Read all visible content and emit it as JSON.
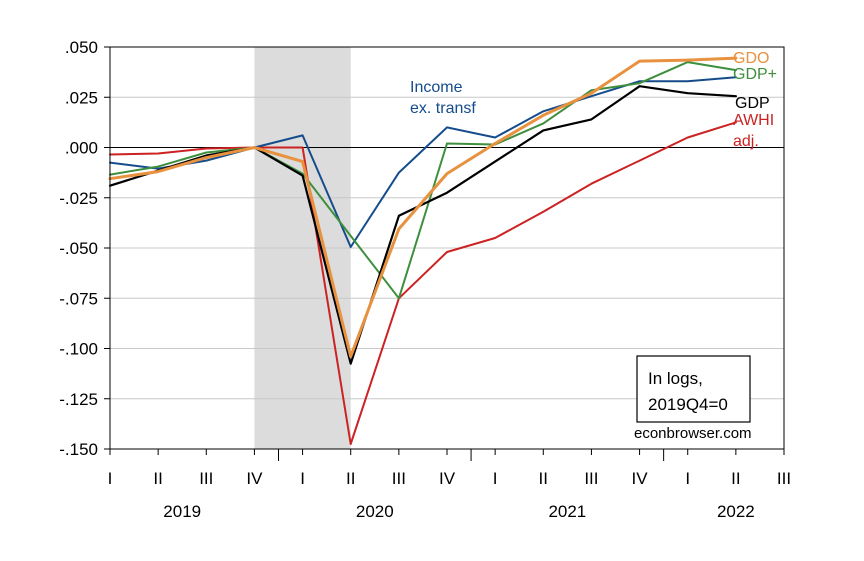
{
  "chart_data": {
    "type": "line",
    "x": [
      "2019Q1",
      "2019Q2",
      "2019Q3",
      "2019Q4",
      "2020Q1",
      "2020Q2",
      "2020Q3",
      "2020Q4",
      "2021Q1",
      "2021Q2",
      "2021Q3",
      "2021Q4",
      "2022Q1",
      "2022Q2"
    ],
    "quarter_ticks": [
      "I",
      "II",
      "III",
      "IV",
      "I",
      "II",
      "III",
      "IV",
      "I",
      "II",
      "III",
      "IV",
      "I",
      "II",
      "III"
    ],
    "years": [
      "2019",
      "2020",
      "2021",
      "2022"
    ],
    "ylim": [
      -0.15,
      0.05
    ],
    "yticks": [
      0.05,
      0.025,
      0.0,
      -0.025,
      -0.05,
      -0.075,
      -0.1,
      -0.125,
      -0.15
    ],
    "ytick_labels": [
      ".050",
      ".025",
      ".000",
      "-.025",
      "-.050",
      "-.075",
      "-.100",
      "-.125",
      "-.150"
    ],
    "recession_shade": {
      "from": "2019Q4",
      "to": "2020Q2",
      "color": "#dcdcdc"
    },
    "zero_line": true,
    "grid": "horizontal",
    "series": [
      {
        "key": "awhi",
        "label_lines": [
          "AWHI",
          "adj."
        ],
        "color": "#cc2222",
        "width": 2,
        "values": [
          -0.0035,
          -0.003,
          -0.0005,
          0.0,
          0.0,
          -0.1475,
          -0.075,
          -0.052,
          -0.045,
          -0.032,
          -0.018,
          -0.0065,
          0.005,
          0.0125
        ]
      },
      {
        "key": "income",
        "label_lines": [
          "Income",
          "ex. transf"
        ],
        "color": "#154c8c",
        "width": 2,
        "values": [
          -0.0075,
          -0.0105,
          -0.0065,
          0.0,
          0.006,
          -0.0495,
          -0.0125,
          0.01,
          0.005,
          0.018,
          0.0255,
          0.033,
          0.033,
          0.035
        ]
      },
      {
        "key": "gdpplus",
        "label_lines": [
          "GDP+"
        ],
        "color": "#3d8f3d",
        "width": 2,
        "values": [
          -0.0135,
          -0.0095,
          -0.0025,
          0.0,
          -0.013,
          -0.044,
          -0.075,
          0.002,
          0.0015,
          0.012,
          0.0285,
          0.032,
          0.0425,
          0.0385
        ]
      },
      {
        "key": "gdp",
        "label_lines": [
          "GDP"
        ],
        "color": "#000000",
        "width": 2.2,
        "values": [
          -0.019,
          -0.0115,
          -0.004,
          0.0,
          -0.014,
          -0.1075,
          -0.034,
          -0.0225,
          -0.007,
          0.0085,
          0.014,
          0.0305,
          0.027,
          0.0255
        ]
      },
      {
        "key": "gdo",
        "label_lines": [
          "GDO"
        ],
        "color": "#e8913f",
        "width": 3,
        "values": [
          -0.0155,
          -0.012,
          -0.005,
          0.0,
          -0.007,
          -0.104,
          -0.0405,
          -0.013,
          0.002,
          0.016,
          0.027,
          0.043,
          0.0435,
          0.0445
        ]
      }
    ],
    "annotation": {
      "lines": [
        "In logs,",
        "2019Q4=0"
      ]
    },
    "credit": "econbrowser.com"
  }
}
